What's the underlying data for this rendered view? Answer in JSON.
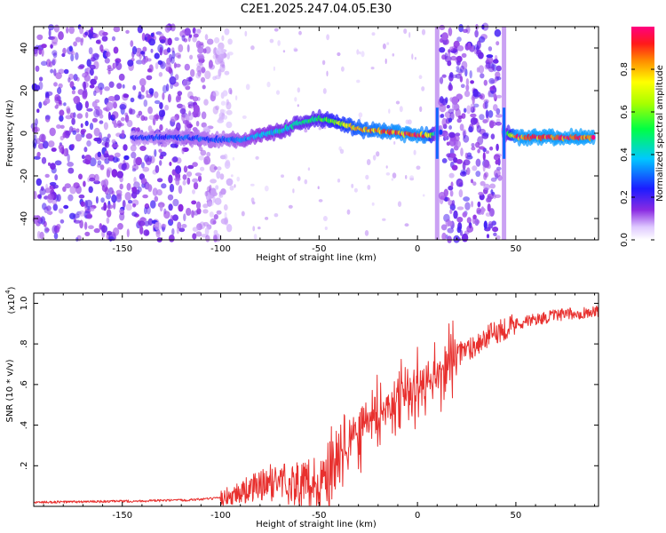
{
  "title": "C2E1.2025.247.04.05.E30",
  "chart_data": [
    {
      "type": "heatmap",
      "xlabel": "Height of straight line (km)",
      "ylabel": "Frequency (Hz)",
      "xlim": [
        -195,
        92
      ],
      "ylim": [
        -50,
        50
      ],
      "x_ticks": [
        -150,
        -100,
        -50,
        0,
        50
      ],
      "y_ticks": [
        -40,
        -20,
        0,
        20,
        40
      ],
      "colorbar": {
        "label": "Normalized spectral amplitude",
        "range": [
          0,
          1
        ],
        "ticks": [
          0.0,
          0.2,
          0.4,
          0.6,
          0.8
        ]
      },
      "ridge": {
        "x": [
          -145,
          -120,
          -100,
          -90,
          -80,
          -70,
          -60,
          -50,
          -40,
          -30,
          -20,
          -10,
          0,
          5,
          10,
          45,
          50,
          60,
          70,
          80,
          90
        ],
        "freq": [
          -2,
          -2,
          -3,
          -3,
          -1,
          1,
          5,
          7,
          5,
          2,
          1,
          0,
          -1,
          -1,
          0,
          0,
          -2,
          -2,
          -2,
          -2,
          -2
        ],
        "amplitude": [
          0.25,
          0.3,
          0.3,
          0.35,
          0.4,
          0.45,
          0.5,
          0.55,
          0.7,
          0.85,
          0.9,
          0.95,
          0.95,
          0.9,
          0.3,
          0.4,
          0.97,
          0.98,
          0.98,
          0.98,
          0.98
        ]
      },
      "noise_regions": [
        [
          -195,
          -95
        ],
        [
          12,
          42
        ]
      ],
      "vertical_streaks": [
        10,
        44
      ]
    },
    {
      "type": "line",
      "xlabel": "Height of straight line (km)",
      "ylabel": "SNR (10 * v/v)",
      "y_scale_label": "(x10",
      "y_scale_exp": "4",
      "xlim": [
        -195,
        92
      ],
      "ylim": [
        0,
        1.05
      ],
      "x_ticks": [
        -150,
        -100,
        -50,
        0,
        50
      ],
      "y_ticks": [
        0.2,
        0.4,
        0.6,
        0.8,
        1.0
      ],
      "series": [
        {
          "name": "SNR",
          "color": "#e8302e",
          "x": [
            -195,
            -150,
            -120,
            -100,
            -90,
            -80,
            -70,
            -60,
            -50,
            -45,
            -40,
            -35,
            -30,
            -25,
            -20,
            -15,
            -10,
            -5,
            0,
            5,
            10,
            20,
            30,
            40,
            50,
            60,
            70,
            80,
            92
          ],
          "y": [
            0.02,
            0.025,
            0.03,
            0.04,
            0.07,
            0.1,
            0.13,
            0.1,
            0.1,
            0.15,
            0.22,
            0.3,
            0.38,
            0.42,
            0.45,
            0.5,
            0.52,
            0.55,
            0.58,
            0.6,
            0.66,
            0.74,
            0.8,
            0.86,
            0.9,
            0.92,
            0.94,
            0.95,
            0.96
          ]
        }
      ]
    }
  ]
}
